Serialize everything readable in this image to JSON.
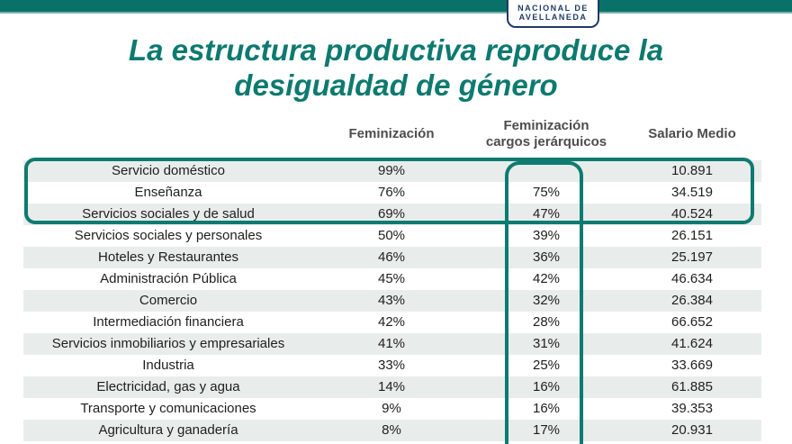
{
  "slide": {
    "title_line1": "La estructura productiva reproduce la",
    "title_line2": "desigualdad de género"
  },
  "logo_badge": {
    "line1": "NACIONAL DE",
    "line2": "AVELLANEDA"
  },
  "colors": {
    "teal_accent": "#0d7a6f",
    "teal_topbar": "#0a7168",
    "highlight_border": "#0e7b70",
    "badge_navy": "#1e3a66",
    "row_alt_bg": "#e8edec",
    "header_text": "#4d4d4d",
    "cell_text": "#1e1e1e"
  },
  "table": {
    "headers": {
      "feminizacion": "Feminización",
      "cargos": "Feminización cargos jerárquicos",
      "salario": "Salario Medio"
    },
    "rows": [
      {
        "sector": "Servicio doméstico",
        "feminizacion": "99%",
        "cargos": "",
        "salario": "10.891"
      },
      {
        "sector": "Enseñanza",
        "feminizacion": "76%",
        "cargos": "75%",
        "salario": "34.519"
      },
      {
        "sector": "Servicios sociales y de salud",
        "feminizacion": "69%",
        "cargos": "47%",
        "salario": "40.524"
      },
      {
        "sector": "Servicios sociales y personales",
        "feminizacion": "50%",
        "cargos": "39%",
        "salario": "26.151"
      },
      {
        "sector": "Hoteles y Restaurantes",
        "feminizacion": "46%",
        "cargos": "36%",
        "salario": "25.197"
      },
      {
        "sector": "Administración Pública",
        "feminizacion": "45%",
        "cargos": "42%",
        "salario": "46.634"
      },
      {
        "sector": "Comercio",
        "feminizacion": "43%",
        "cargos": "32%",
        "salario": "26.384"
      },
      {
        "sector": "Intermediación financiera",
        "feminizacion": "42%",
        "cargos": "28%",
        "salario": "66.652"
      },
      {
        "sector": "Servicios inmobiliarios y empresariales",
        "feminizacion": "41%",
        "cargos": "31%",
        "salario": "41.624"
      },
      {
        "sector": "Industria",
        "feminizacion": "33%",
        "cargos": "25%",
        "salario": "33.669"
      },
      {
        "sector": "Electricidad, gas y agua",
        "feminizacion": "14%",
        "cargos": "16%",
        "salario": "61.885"
      },
      {
        "sector": "Transporte y comunicaciones",
        "feminizacion": "9%",
        "cargos": "16%",
        "salario": "39.353"
      },
      {
        "sector": "Agricultura y ganadería",
        "feminizacion": "8%",
        "cargos": "17%",
        "salario": "20.931"
      }
    ]
  },
  "chart_data": {
    "type": "table",
    "title": "La estructura productiva reproduce la desigualdad de género",
    "columns": [
      "Sector",
      "Feminización",
      "Feminización cargos jerárquicos",
      "Salario Medio"
    ],
    "rows": [
      [
        "Servicio doméstico",
        "99%",
        "",
        "10.891"
      ],
      [
        "Enseñanza",
        "76%",
        "75%",
        "34.519"
      ],
      [
        "Servicios sociales y de salud",
        "69%",
        "47%",
        "40.524"
      ],
      [
        "Servicios sociales y personales",
        "50%",
        "39%",
        "26.151"
      ],
      [
        "Hoteles y Restaurantes",
        "46%",
        "36%",
        "25.197"
      ],
      [
        "Administración Pública",
        "45%",
        "42%",
        "46.634"
      ],
      [
        "Comercio",
        "43%",
        "32%",
        "26.384"
      ],
      [
        "Intermediación financiera",
        "42%",
        "28%",
        "66.652"
      ],
      [
        "Servicios inmobiliarios y empresariales",
        "41%",
        "31%",
        "41.624"
      ],
      [
        "Industria",
        "33%",
        "25%",
        "33.669"
      ],
      [
        "Electricidad, gas y agua",
        "14%",
        "16%",
        "61.885"
      ],
      [
        "Transporte y comunicaciones",
        "9%",
        "16%",
        "39.353"
      ],
      [
        "Agricultura y ganadería",
        "8%",
        "17%",
        "20.931"
      ]
    ],
    "layout_hints": {
      "zebra_striping": true,
      "highlight_boxes": [
        "teal rounded outline around top 3 rows (Servicio doméstico, Enseñanza, Servicios sociales y de salud)",
        "teal rounded outline around the 'Feminización cargos jerárquicos' value column, open at bottom edge"
      ]
    }
  }
}
